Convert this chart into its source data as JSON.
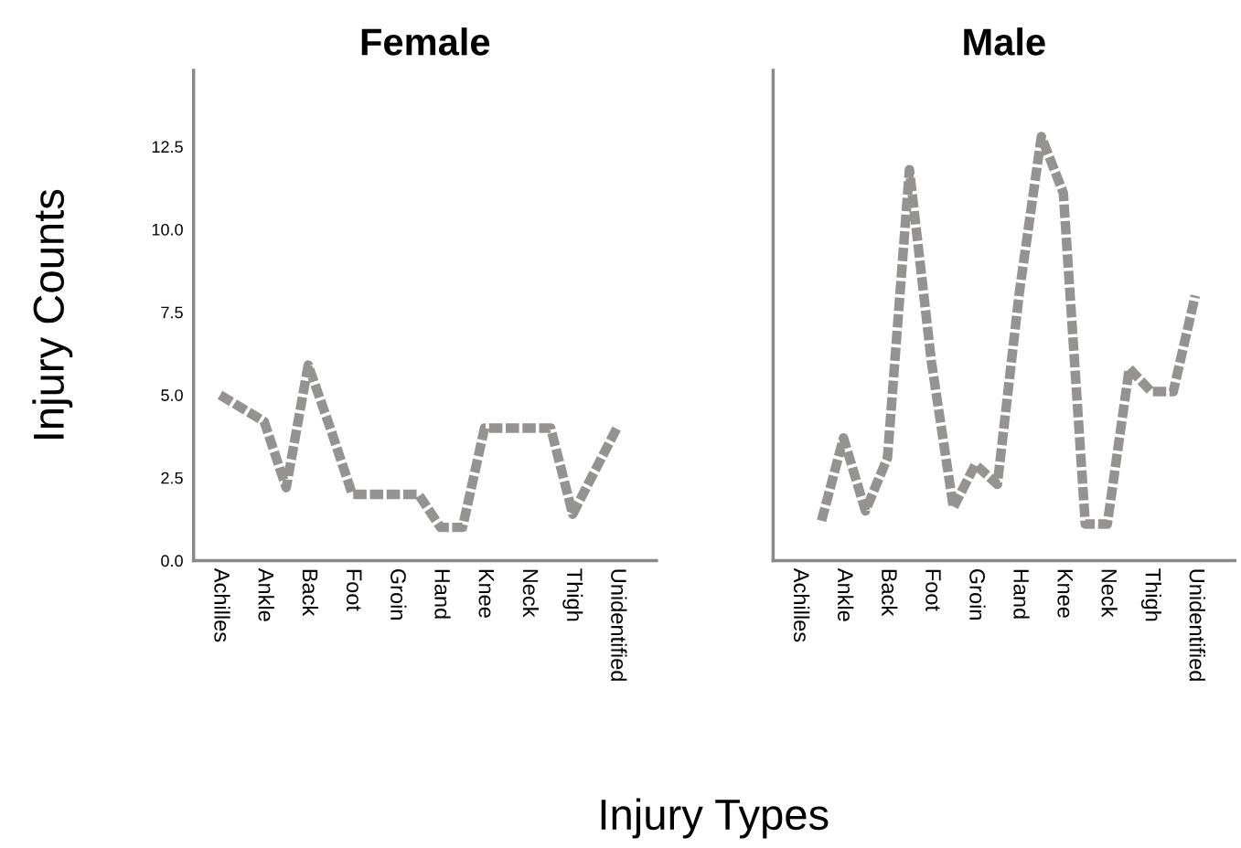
{
  "chart_data": [
    {
      "type": "line",
      "title": "Female",
      "ylabel": "Injury Counts",
      "xlabel": "Injury Types",
      "categories": [
        "Achilles",
        null,
        "Ankle",
        null,
        "Back",
        null,
        "Foot",
        null,
        "Groin",
        null,
        "Hand",
        null,
        "Knee",
        null,
        "Neck",
        null,
        "Thigh",
        null,
        "Unidentified",
        null
      ],
      "ylim": [
        0,
        14.8
      ],
      "yticks": [
        {
          "value": 0,
          "label": "0.0"
        },
        {
          "value": 2.5,
          "label": "2.5"
        },
        {
          "value": 5,
          "label": "5.0"
        },
        {
          "value": 7.5,
          "label": "7.5"
        },
        {
          "value": 10,
          "label": "10.0"
        },
        {
          "value": 12.5,
          "label": "12.5"
        }
      ],
      "grid": false,
      "marker": "none",
      "line_style": "dashed",
      "series": [
        {
          "color": "#959292",
          "values": [
            5,
            4.6,
            4.2,
            2.2,
            5.9,
            4,
            2,
            2,
            2,
            2,
            1,
            1,
            4,
            4,
            4,
            4,
            1.4,
            2.7,
            4,
            null
          ]
        }
      ]
    },
    {
      "type": "line",
      "title": "Male",
      "categories": [
        "Achilles",
        null,
        "Ankle",
        null,
        "Back",
        null,
        "Foot",
        null,
        "Groin",
        null,
        "Hand",
        null,
        "Knee",
        null,
        "Neck",
        null,
        "Thigh",
        null,
        "Unidentified",
        null
      ],
      "ylim": [
        0,
        14.8
      ],
      "tick_labels": "x",
      "grid": false,
      "marker": "none",
      "line_style": "dashed",
      "series": [
        {
          "color": "#959292",
          "values": [
            null,
            1.2,
            3.7,
            1.5,
            3.1,
            11.8,
            6,
            1.6,
            2.9,
            2.3,
            8.1,
            12.8,
            11.1,
            1.1,
            1.1,
            5.8,
            5.1,
            5.1,
            8,
            null
          ]
        }
      ]
    }
  ]
}
